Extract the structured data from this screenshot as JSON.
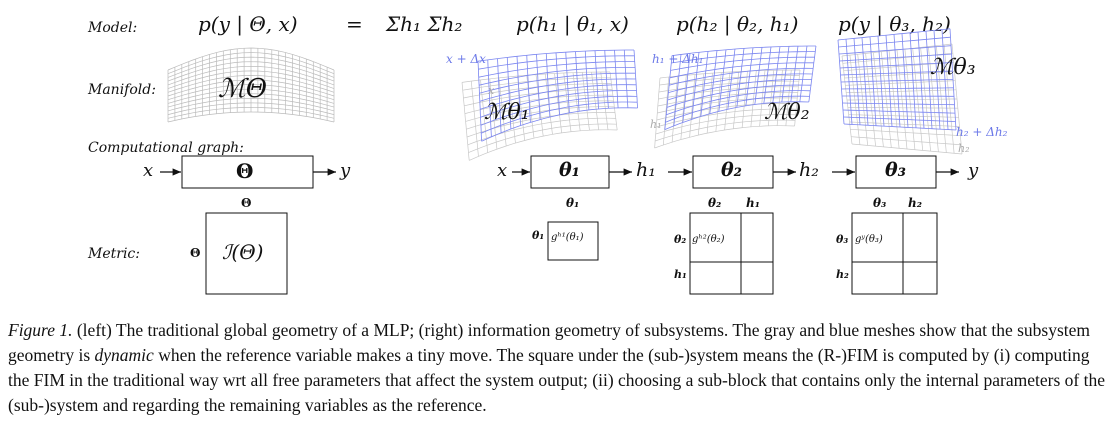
{
  "rows": {
    "model": "Model:",
    "manifold": "Manifold:",
    "graph": "Computational graph:",
    "metric": "Metric:"
  },
  "model_eq": {
    "lhs": "p(y | Θ, x)",
    "equals": "=",
    "sum": "Σh₁ Σh₂",
    "t1": "p(h₁ | θ₁, x)",
    "t2": "p(h₂ | θ₂, h₁)",
    "t3": "p(y | θ₃, h₂)"
  },
  "manifold_labels": {
    "global": "ℳΘ",
    "m1": "ℳθ₁",
    "m2": "ℳθ₂",
    "m3": "ℳθ₃",
    "x_shift": "x + Δx",
    "x_gray": "x",
    "h1_shift": "h₁ + Δh₁",
    "h1_gray": "h₁",
    "h2_shift": "h₂ + Δh₂",
    "h2_gray": "h₂"
  },
  "graph": {
    "left_in": "x",
    "left_box": "Θ",
    "left_out": "y",
    "chain_in": "x",
    "b1": "θ₁",
    "h1": "h₁",
    "b2": "θ₂",
    "h2": "h₂",
    "b3": "θ₃",
    "out": "y"
  },
  "metric": {
    "left_col": "Θ",
    "left_row": "Θ",
    "left_cell": "ℐ(Θ)",
    "m1_col": "θ₁",
    "m1_row": "θ₁",
    "m1_cell": "gʰ¹(θ₁)",
    "m2_col1": "θ₂",
    "m2_col2": "h₁",
    "m2_row1": "θ₂",
    "m2_row2": "h₁",
    "m2_cell": "gʰ²(θ₂)",
    "m3_col1": "θ₃",
    "m3_col2": "h₂",
    "m3_row1": "θ₃",
    "m3_row2": "h₂",
    "m3_cell": "gʸ(θ₃)"
  },
  "caption": {
    "fig_label": "Figure 1.",
    "text_a": " (left) The traditional global geometry of a MLP; (right) information geometry of subsystems. The gray and blue meshes show that the subsystem geometry is ",
    "emph": "dynamic",
    "text_b": " when the reference variable makes a tiny move. The square under the (sub-)system means the (R-)FIM is computed by (i) computing the FIM in the traditional way wrt all free parameters that affect the system output; (ii) choosing a sub-block that contains only the internal parameters of the (sub-)system and regarding the remaining variables as the reference."
  }
}
